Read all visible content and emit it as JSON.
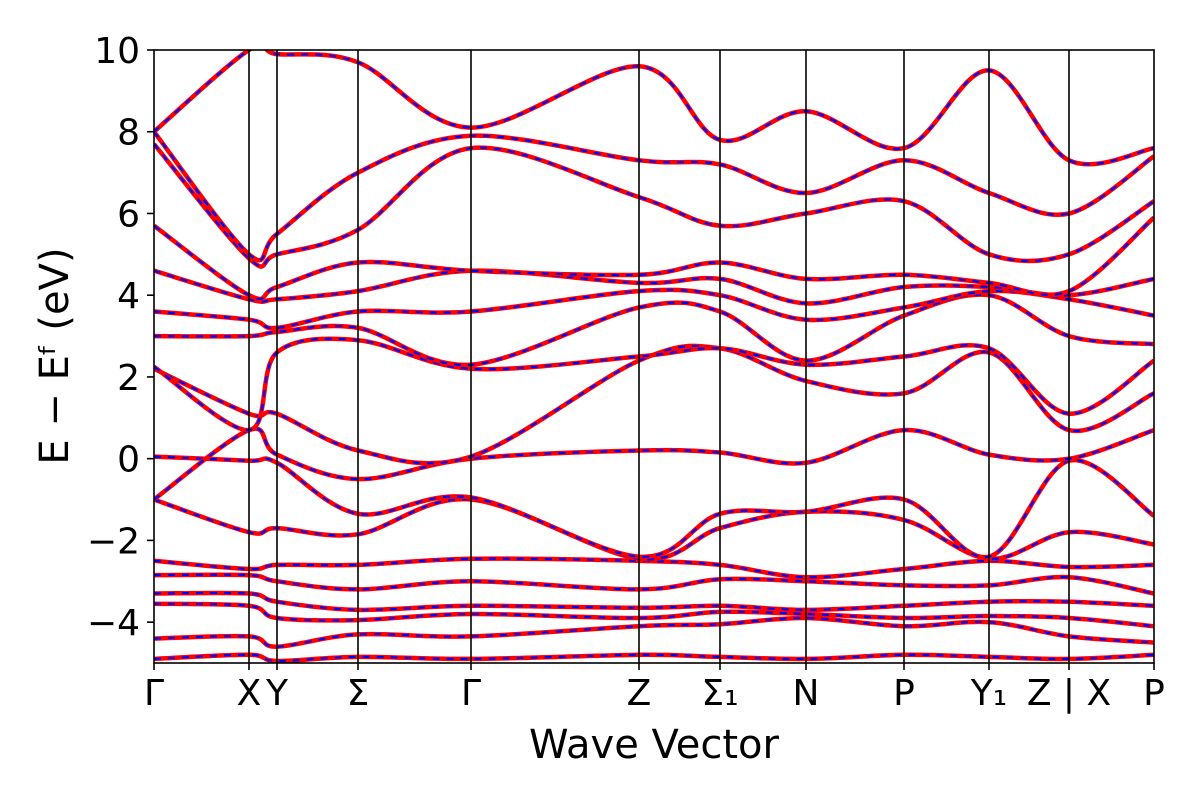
{
  "chart_data": {
    "type": "line",
    "xlabel": "Wave Vector",
    "ylabel": "E − Eᶠ (eV)",
    "ylim": [
      -5,
      10
    ],
    "yticks": [
      {
        "value": -4,
        "label": "−4"
      },
      {
        "value": -2,
        "label": "−2"
      },
      {
        "value": 0,
        "label": "0"
      },
      {
        "value": 2,
        "label": "2"
      },
      {
        "value": 4,
        "label": "4"
      },
      {
        "value": 6,
        "label": "6"
      },
      {
        "value": 8,
        "label": "8"
      },
      {
        "value": 10,
        "label": "10"
      }
    ],
    "xlim": [
      0,
      1
    ],
    "kpoints": [
      {
        "label": "Γ",
        "pos": 0.0
      },
      {
        "label": "X",
        "pos": 0.095
      },
      {
        "label": "Y",
        "pos": 0.123
      },
      {
        "label": "Σ",
        "pos": 0.204
      },
      {
        "label": "Γ",
        "pos": 0.317
      },
      {
        "label": "Z",
        "pos": 0.485
      },
      {
        "label": "Σ₁",
        "pos": 0.566
      },
      {
        "label": "N",
        "pos": 0.652
      },
      {
        "label": "P",
        "pos": 0.75
      },
      {
        "label": "Y₁",
        "pos": 0.835
      },
      {
        "label": "Z | X",
        "pos": 0.915
      },
      {
        "label": "P",
        "pos": 1.0
      }
    ],
    "grid": false,
    "style": {
      "band_color": "#ff0000",
      "overlay_color": "#0000ff",
      "overlay_dash": "dashed"
    },
    "series": [
      {
        "x": [
          0.0,
          0.095,
          0.123,
          0.204,
          0.317,
          0.485,
          0.566,
          0.652,
          0.75,
          0.835,
          0.915,
          1.0
        ],
        "y": [
          -4.9,
          -4.8,
          -4.95,
          -4.85,
          -4.9,
          -4.8,
          -4.85,
          -4.9,
          -4.8,
          -4.85,
          -4.9,
          -4.8
        ]
      },
      {
        "x": [
          0.0,
          0.095,
          0.123,
          0.204,
          0.317,
          0.485,
          0.566,
          0.652,
          0.75,
          0.835,
          0.915,
          1.0
        ],
        "y": [
          -4.4,
          -4.35,
          -4.6,
          -4.3,
          -4.35,
          -4.1,
          -4.05,
          -3.9,
          -4.1,
          -4.0,
          -4.35,
          -4.5
        ]
      },
      {
        "x": [
          0.0,
          0.095,
          0.123,
          0.204,
          0.317,
          0.485,
          0.566,
          0.652,
          0.75,
          0.835,
          0.915,
          1.0
        ],
        "y": [
          -3.55,
          -3.6,
          -3.9,
          -3.95,
          -3.8,
          -3.9,
          -3.75,
          -3.8,
          -3.9,
          -3.85,
          -3.9,
          -4.1
        ]
      },
      {
        "x": [
          0.0,
          0.095,
          0.123,
          0.204,
          0.317,
          0.485,
          0.566,
          0.652,
          0.75,
          0.835,
          0.915,
          1.0
        ],
        "y": [
          -3.3,
          -3.3,
          -3.5,
          -3.7,
          -3.6,
          -3.65,
          -3.6,
          -3.7,
          -3.6,
          -3.5,
          -3.5,
          -3.6
        ]
      },
      {
        "x": [
          0.0,
          0.095,
          0.123,
          0.204,
          0.317,
          0.485,
          0.566,
          0.652,
          0.75,
          0.835,
          0.915,
          1.0
        ],
        "y": [
          -2.85,
          -2.85,
          -3.0,
          -3.2,
          -3.0,
          -3.2,
          -2.95,
          -3.0,
          -3.1,
          -3.1,
          -2.9,
          -3.3
        ]
      },
      {
        "x": [
          0.0,
          0.095,
          0.123,
          0.204,
          0.317,
          0.485,
          0.566,
          0.652,
          0.75,
          0.835,
          0.915,
          1.0
        ],
        "y": [
          -2.5,
          -2.7,
          -2.6,
          -2.6,
          -2.45,
          -2.5,
          -2.6,
          -2.9,
          -2.7,
          -2.5,
          -2.65,
          -2.6
        ]
      },
      {
        "x": [
          0.0,
          0.095,
          0.123,
          0.204,
          0.317,
          0.485,
          0.566,
          0.652,
          0.75,
          0.835,
          0.915,
          1.0
        ],
        "y": [
          -1.0,
          -1.8,
          -1.7,
          -1.85,
          -1.0,
          -2.45,
          -1.7,
          -1.3,
          -1.5,
          -2.45,
          -1.8,
          -2.1
        ]
      },
      {
        "x": [
          0.0,
          0.095,
          0.123,
          0.204,
          0.317,
          0.485,
          0.566,
          0.652,
          0.75,
          0.835,
          0.915,
          1.0
        ],
        "y": [
          0.05,
          -0.05,
          -0.1,
          -1.35,
          -0.95,
          -2.4,
          -1.35,
          -1.3,
          -1.0,
          -2.4,
          -0.05,
          -1.4
        ]
      },
      {
        "x": [
          0.0,
          0.095,
          0.123,
          0.204,
          0.317,
          0.485,
          0.566,
          0.652,
          0.75,
          0.835,
          0.915,
          1.0
        ],
        "y": [
          -1.0,
          0.7,
          0.1,
          -0.5,
          0.0,
          0.2,
          0.15,
          -0.1,
          0.7,
          0.1,
          0.0,
          0.7
        ]
      },
      {
        "x": [
          0.0,
          0.095,
          0.123,
          0.204,
          0.317,
          0.485,
          0.566,
          0.652,
          0.75,
          0.835,
          0.915,
          1.0
        ],
        "y": [
          2.2,
          1.1,
          1.1,
          0.2,
          0.05,
          2.4,
          2.7,
          1.9,
          1.6,
          2.6,
          0.7,
          1.6
        ]
      },
      {
        "x": [
          0.0,
          0.095,
          0.123,
          0.204,
          0.317,
          0.485,
          0.566,
          0.652,
          0.75,
          0.835,
          0.915,
          1.0
        ],
        "y": [
          2.25,
          0.7,
          2.6,
          2.9,
          2.2,
          2.5,
          2.7,
          2.3,
          2.5,
          2.7,
          1.1,
          2.4
        ]
      },
      {
        "x": [
          0.0,
          0.095,
          0.123,
          0.204,
          0.317,
          0.485,
          0.566,
          0.652,
          0.75,
          0.835,
          0.915,
          1.0
        ],
        "y": [
          3.0,
          3.0,
          3.1,
          3.2,
          2.3,
          3.7,
          3.6,
          2.4,
          3.5,
          4.0,
          3.0,
          2.8
        ]
      },
      {
        "x": [
          0.0,
          0.095,
          0.123,
          0.204,
          0.317,
          0.485,
          0.566,
          0.652,
          0.75,
          0.835,
          0.915,
          1.0
        ],
        "y": [
          3.6,
          3.4,
          3.2,
          3.6,
          3.6,
          4.1,
          4.0,
          3.4,
          3.7,
          4.1,
          3.9,
          3.5
        ]
      },
      {
        "x": [
          0.0,
          0.095,
          0.123,
          0.204,
          0.317,
          0.485,
          0.566,
          0.652,
          0.75,
          0.835,
          0.915,
          1.0
        ],
        "y": [
          4.6,
          3.9,
          3.9,
          4.1,
          4.6,
          4.3,
          4.4,
          3.8,
          4.2,
          4.2,
          4.0,
          4.4
        ]
      },
      {
        "x": [
          0.0,
          0.095,
          0.123,
          0.204,
          0.317,
          0.485,
          0.566,
          0.652,
          0.75,
          0.835,
          0.915,
          1.0
        ],
        "y": [
          5.7,
          4.0,
          4.2,
          4.8,
          4.6,
          4.5,
          4.8,
          4.4,
          4.5,
          4.3,
          4.1,
          5.9
        ]
      },
      {
        "x": [
          0.0,
          0.095,
          0.123,
          0.204,
          0.317,
          0.485,
          0.566,
          0.652,
          0.75,
          0.835,
          0.915,
          1.0
        ],
        "y": [
          7.7,
          4.9,
          5.0,
          5.6,
          7.6,
          6.4,
          5.7,
          6.0,
          6.3,
          5.0,
          5.0,
          6.3
        ]
      },
      {
        "x": [
          0.0,
          0.095,
          0.123,
          0.204,
          0.317,
          0.485,
          0.566,
          0.652,
          0.75,
          0.835,
          0.915,
          1.0
        ],
        "y": [
          8.0,
          5.0,
          5.5,
          7.0,
          7.9,
          7.3,
          7.2,
          6.5,
          7.3,
          6.5,
          6.0,
          7.4
        ]
      },
      {
        "x": [
          0.0,
          0.095,
          0.123,
          0.204,
          0.317,
          0.485,
          0.566,
          0.652,
          0.75,
          0.835,
          0.915,
          1.0
        ],
        "y": [
          8.0,
          10.0,
          9.9,
          9.7,
          8.1,
          9.6,
          7.8,
          8.5,
          7.6,
          9.5,
          7.3,
          7.6
        ]
      }
    ]
  }
}
